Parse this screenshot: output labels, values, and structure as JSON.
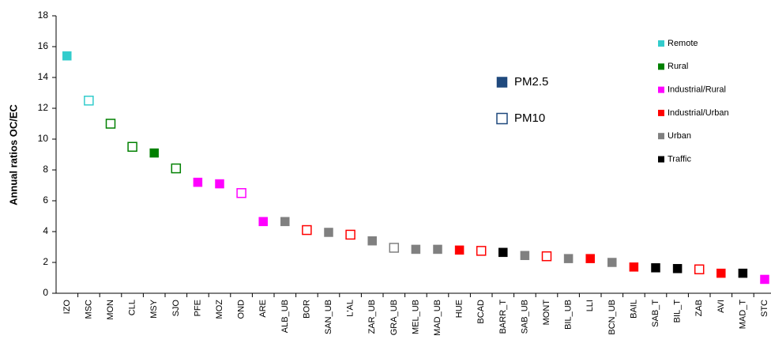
{
  "chart_data": {
    "type": "scatter",
    "y_label": "Annual ratios OC/EC",
    "categories": [
      "IZO",
      "MSC",
      "MON",
      "CLL",
      "MSY",
      "SJO",
      "PFE",
      "MOZ",
      "OND",
      "ARE",
      "ALB_UB",
      "BOR",
      "SAN_UB",
      "L'AL",
      "ZAR_UB",
      "GRA_UB",
      "MEL_UB",
      "MAD_UB",
      "HUE",
      "BCAD",
      "BARR_T",
      "SAB_UB",
      "MONT",
      "BIL_UB",
      "LLI",
      "BCN_UB",
      "BAIL",
      "SAB_T",
      "BIL_T",
      "ZAB",
      "AVI",
      "MAD_T",
      "STC"
    ],
    "ylim": [
      0,
      18
    ],
    "yticks": [
      0,
      2,
      4,
      6,
      8,
      10,
      12,
      14,
      16,
      18
    ],
    "markers": [
      {
        "name": "PM2.5",
        "filled": true,
        "color": "#1f497d"
      },
      {
        "name": "PM10",
        "filled": false,
        "color": "#1f497d"
      }
    ],
    "point_fractions": [
      "PM2.5",
      "PM10",
      "PM10",
      "PM10",
      "PM2.5",
      "PM10",
      "PM2.5",
      "PM2.5",
      "PM10",
      "PM2.5",
      "PM2.5",
      "PM10",
      "PM2.5",
      "PM10",
      "PM2.5",
      "PM10",
      "PM2.5",
      "PM2.5",
      "PM2.5",
      "PM10",
      "PM2.5",
      "PM2.5",
      "PM10",
      "PM2.5",
      "PM2.5",
      "PM2.5",
      "PM2.5",
      "PM2.5",
      "PM2.5",
      "PM10",
      "PM2.5",
      "PM2.5",
      "PM2.5"
    ],
    "series": [
      {
        "name": "Remote",
        "color": "#33cccc",
        "values": [
          15.4,
          12.5,
          null,
          null,
          null,
          null,
          null,
          null,
          null,
          null,
          null,
          null,
          null,
          null,
          null,
          null,
          null,
          null,
          null,
          null,
          null,
          null,
          null,
          null,
          null,
          null,
          null,
          null,
          null,
          null,
          null,
          null,
          null
        ]
      },
      {
        "name": "Rural",
        "color": "#008000",
        "values": [
          null,
          null,
          11.0,
          9.5,
          9.1,
          8.1,
          null,
          null,
          null,
          null,
          null,
          null,
          null,
          null,
          null,
          null,
          null,
          null,
          null,
          null,
          null,
          null,
          null,
          null,
          null,
          null,
          null,
          null,
          null,
          null,
          null,
          null,
          null
        ]
      },
      {
        "name": "Industrial/Rural",
        "color": "#ff00ff",
        "values": [
          null,
          null,
          null,
          null,
          null,
          null,
          7.2,
          7.1,
          6.5,
          4.65,
          null,
          null,
          null,
          null,
          null,
          null,
          null,
          null,
          null,
          null,
          null,
          null,
          null,
          null,
          null,
          null,
          null,
          null,
          null,
          null,
          null,
          null,
          0.9
        ]
      },
      {
        "name": "Industrial/Urban",
        "color": "#ff0000",
        "values": [
          null,
          null,
          null,
          null,
          null,
          null,
          null,
          null,
          null,
          null,
          null,
          4.1,
          null,
          3.8,
          null,
          null,
          null,
          null,
          2.8,
          2.75,
          null,
          null,
          2.4,
          null,
          2.25,
          null,
          1.7,
          null,
          null,
          1.55,
          1.3,
          null,
          null
        ]
      },
      {
        "name": "Urban",
        "color": "#808080",
        "values": [
          null,
          null,
          null,
          null,
          null,
          null,
          null,
          null,
          null,
          null,
          4.65,
          null,
          3.95,
          null,
          3.4,
          2.95,
          2.85,
          2.85,
          null,
          null,
          null,
          2.45,
          null,
          2.25,
          null,
          2.0,
          null,
          null,
          null,
          null,
          null,
          null,
          null
        ]
      },
      {
        "name": "Traffic",
        "color": "#000000",
        "values": [
          null,
          null,
          null,
          null,
          null,
          null,
          null,
          null,
          null,
          null,
          null,
          null,
          null,
          null,
          null,
          null,
          null,
          null,
          null,
          null,
          2.65,
          null,
          null,
          null,
          null,
          null,
          null,
          1.65,
          1.6,
          null,
          null,
          1.3,
          null
        ]
      }
    ]
  }
}
